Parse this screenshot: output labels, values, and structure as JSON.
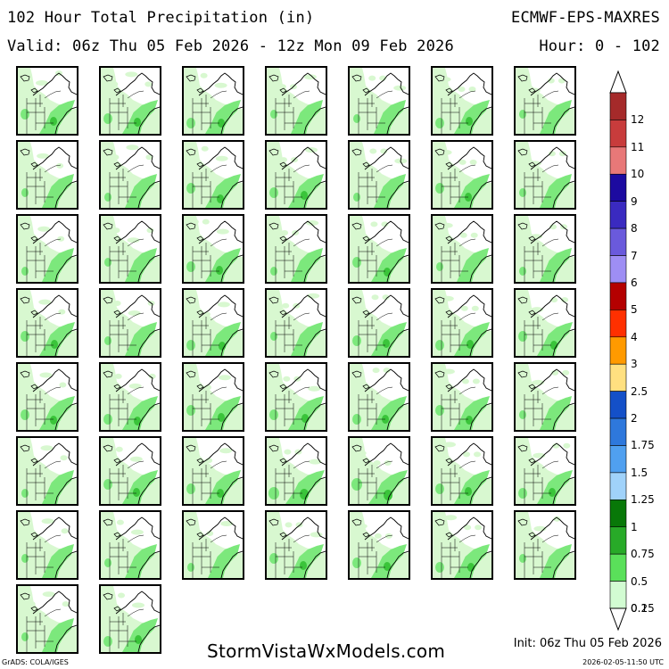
{
  "header": {
    "title": "102 Hour Total Precipitation (in)",
    "model": "ECMWF-EPS-MAXRES",
    "valid": "Valid: 06z Thu 05 Feb 2026 - 12z Mon 09 Feb 2026",
    "hour": "Hour: 0 - 102"
  },
  "colorbar": {
    "labels": [
      "12",
      "11",
      "10",
      "9",
      "8",
      "7",
      "6",
      "5",
      "4",
      "3",
      "2.5",
      "2",
      "1.75",
      "1.5",
      "1.25",
      "1",
      "0.75",
      "0.5",
      "0.25",
      "0.1"
    ],
    "colors": [
      "#a52a2a",
      "#c83c3c",
      "#e87878",
      "#1c0aa0",
      "#3a2ac0",
      "#6a5adc",
      "#9e8ef4",
      "#b40000",
      "#ff3000",
      "#ff9a00",
      "#ffe080",
      "#1450c8",
      "#2e78dc",
      "#50a0f0",
      "#a0d2fa",
      "#087808",
      "#28aa28",
      "#5ae05a",
      "#d2fcd2"
    ],
    "panel_color_light": "#d8f8d0",
    "panel_color_mid": "#7ce87c",
    "panel_color_dark": "#3ac43a"
  },
  "panels": {
    "count": 51,
    "intensity": [
      2,
      2,
      2,
      1,
      1,
      2,
      1,
      1,
      1,
      2,
      2,
      1,
      2,
      1,
      1,
      1,
      2,
      1,
      2,
      1,
      1,
      2,
      1,
      2,
      1,
      2,
      2,
      2,
      2,
      2,
      2,
      2,
      2,
      2,
      1,
      1,
      2,
      2,
      3,
      3,
      2,
      2,
      1,
      1,
      1,
      2,
      2,
      2,
      1,
      1,
      2
    ]
  },
  "footer": {
    "site": "StormVistaWxModels.com",
    "init": "Init: 06z Thu 05 Feb 2026",
    "grads": "GrADS: COLA/IGES",
    "timestamp": "2026-02-05-11:50 UTC"
  }
}
